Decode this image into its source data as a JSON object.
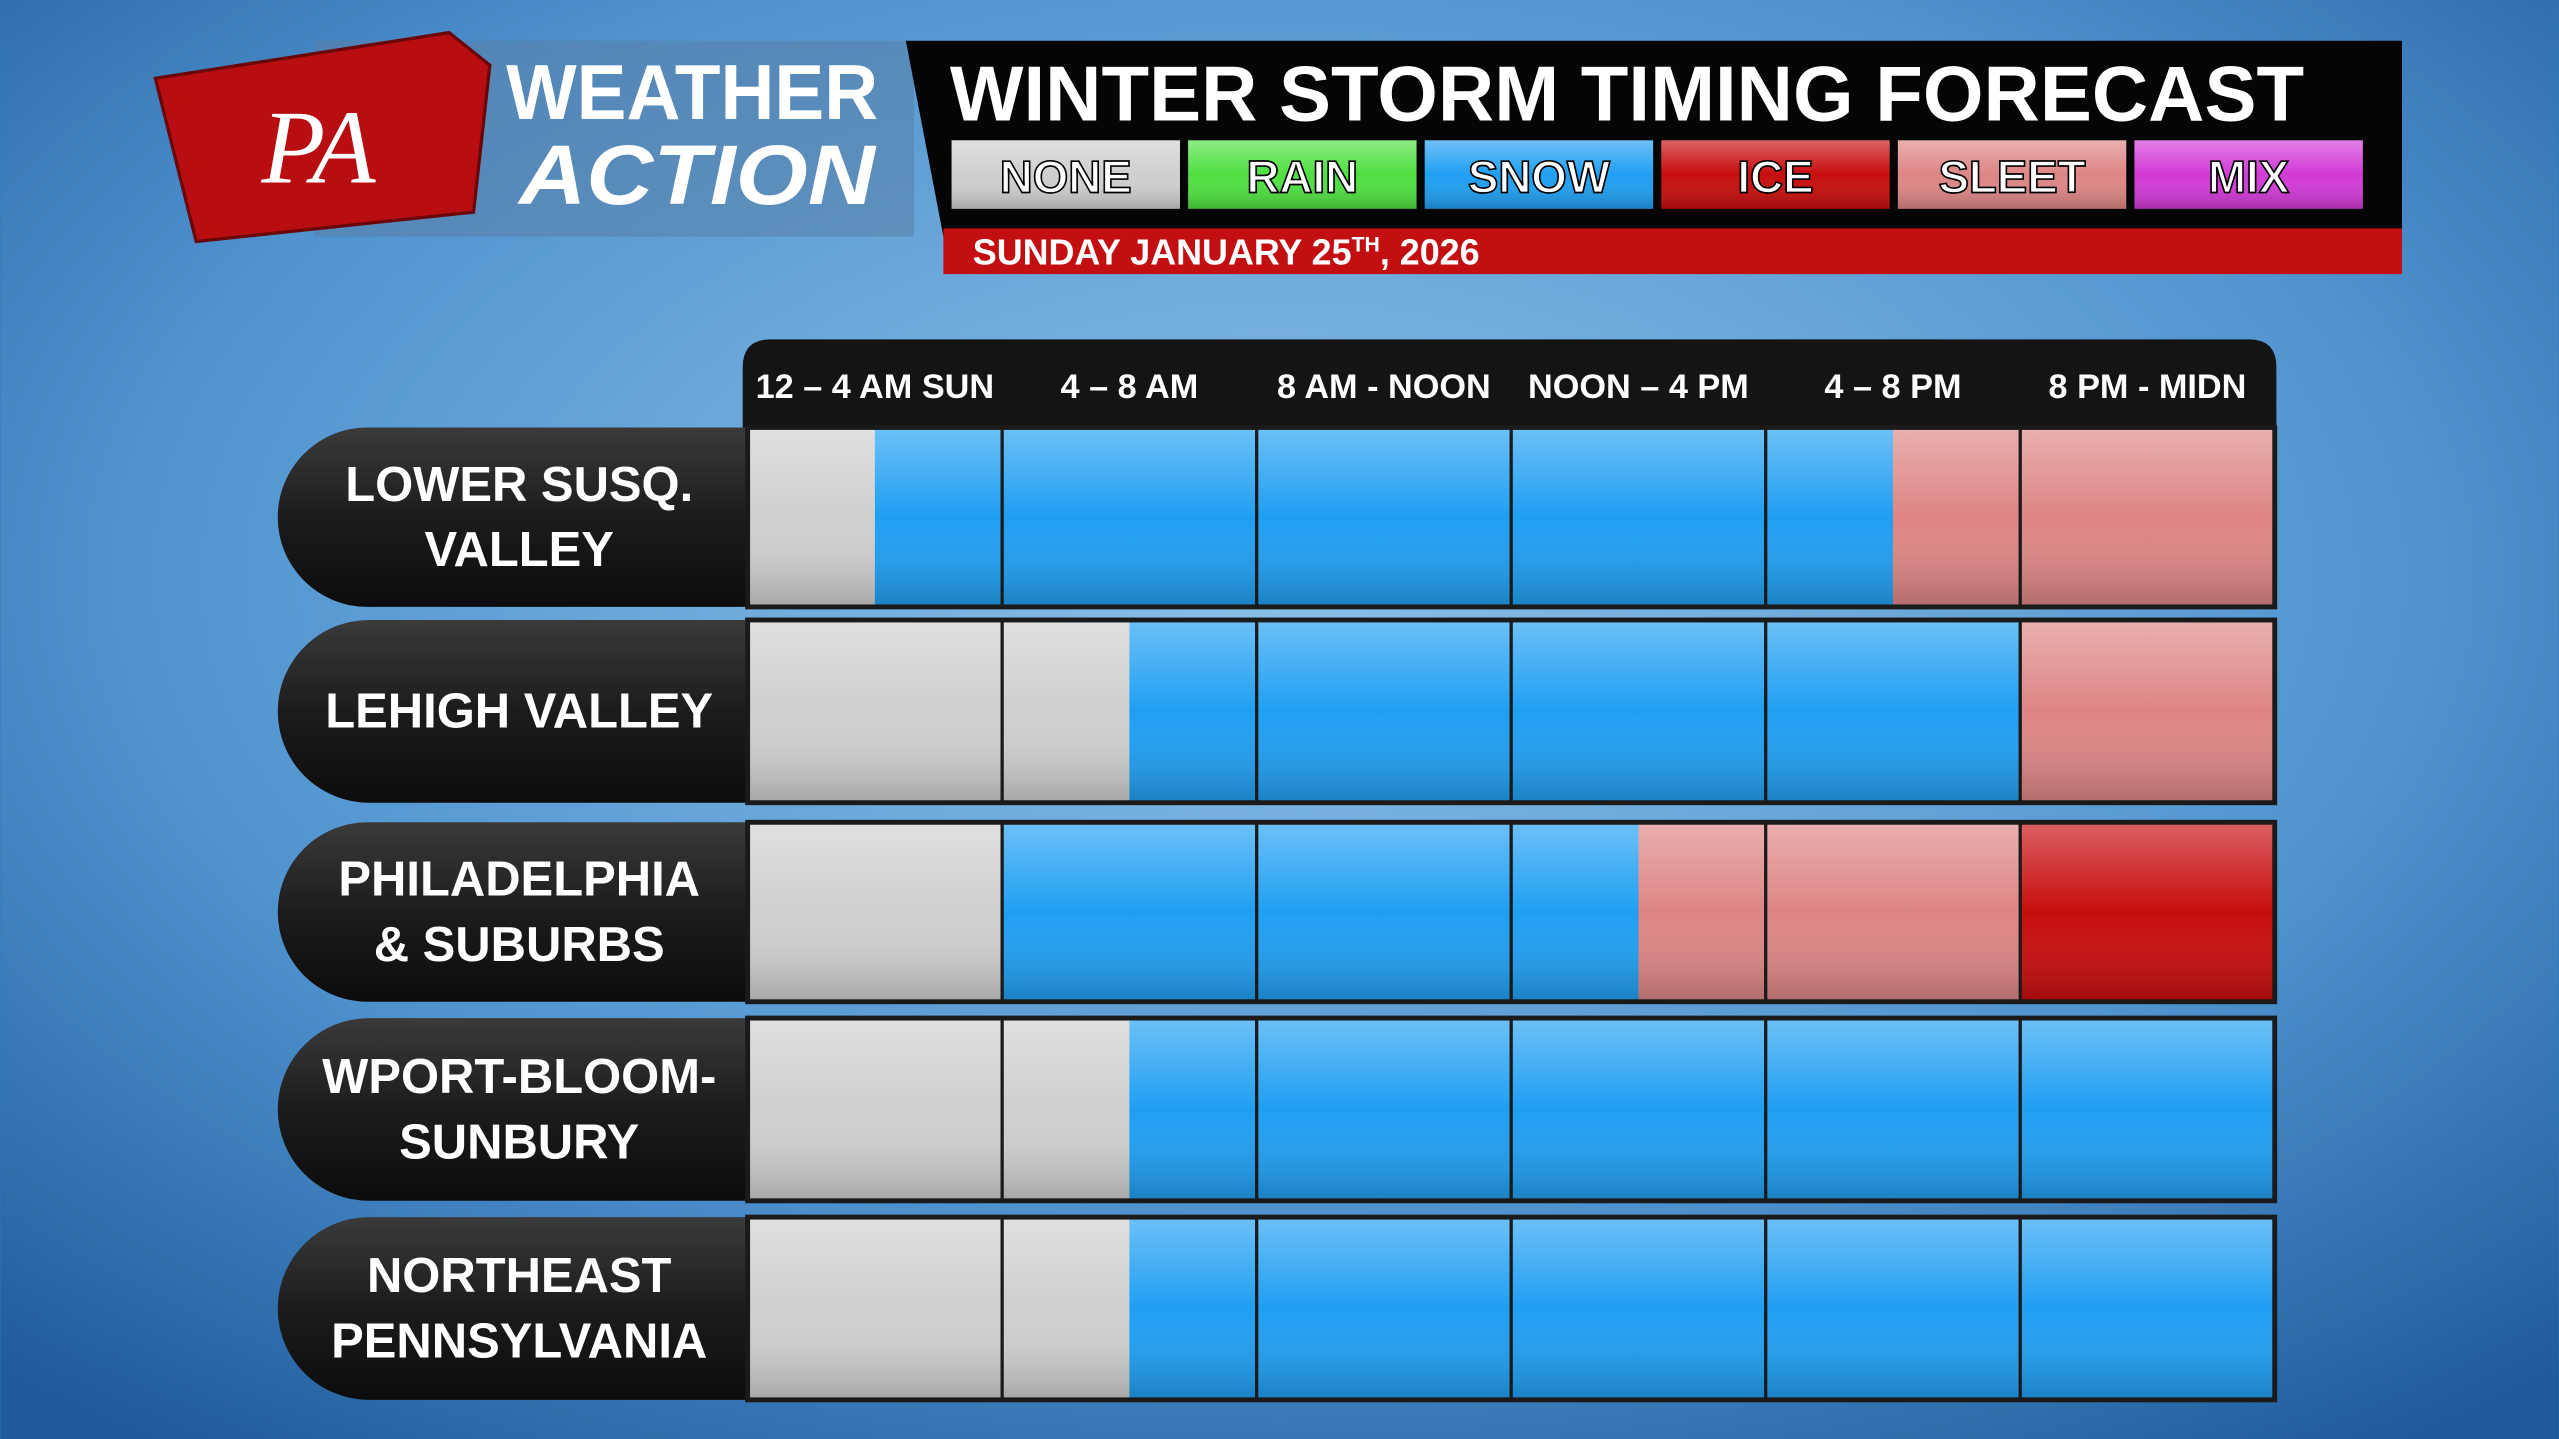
{
  "brand": {
    "logo": "PA",
    "line1": "WEATHER",
    "line2": "ACTION"
  },
  "title": "WINTER STORM TIMING FORECAST",
  "legend": [
    {
      "name": "NONE",
      "color": "#cfcfcf"
    },
    {
      "name": "RAIN",
      "color": "#4fe040"
    },
    {
      "name": "SNOW",
      "color": "#1f9ff2"
    },
    {
      "name": "ICE",
      "color": "#c80d0d"
    },
    {
      "name": "SLEET",
      "color": "#de8585"
    },
    {
      "name": "MIX",
      "color": "#d23ad6"
    }
  ],
  "date": [
    "SUNDAY JANUARY 25",
    "TH",
    ", 2026"
  ],
  "columns": [
    "12 – 4 AM SUN",
    "4 – 8 AM",
    "8 AM - NOON",
    "NOON – 4 PM",
    "4 – 8 PM",
    "8 PM - MIDN"
  ],
  "rows": [
    {
      "name": [
        "LOWER SUSQ.",
        "VALLEY"
      ],
      "slots": [
        0,
        2,
        2,
        2,
        2,
        2,
        2,
        2,
        2,
        4,
        4,
        4
      ]
    },
    {
      "name": [
        "LEHIGH VALLEY"
      ],
      "slots": [
        0,
        0,
        0,
        2,
        2,
        2,
        2,
        2,
        2,
        2,
        4,
        4
      ]
    },
    {
      "name": [
        "PHILADELPHIA",
        "& SUBURBS"
      ],
      "slots": [
        0,
        0,
        2,
        2,
        2,
        2,
        2,
        4,
        4,
        4,
        3,
        3
      ]
    },
    {
      "name": [
        "WPORT-BLOOM-",
        "SUNBURY"
      ],
      "slots": [
        0,
        0,
        0,
        2,
        2,
        2,
        2,
        2,
        2,
        2,
        2,
        2
      ]
    },
    {
      "name": [
        "NORTHEAST",
        "PENNSYLVANIA"
      ],
      "slots": [
        0,
        0,
        0,
        2,
        2,
        2,
        2,
        2,
        2,
        2,
        2,
        2
      ]
    }
  ]
}
